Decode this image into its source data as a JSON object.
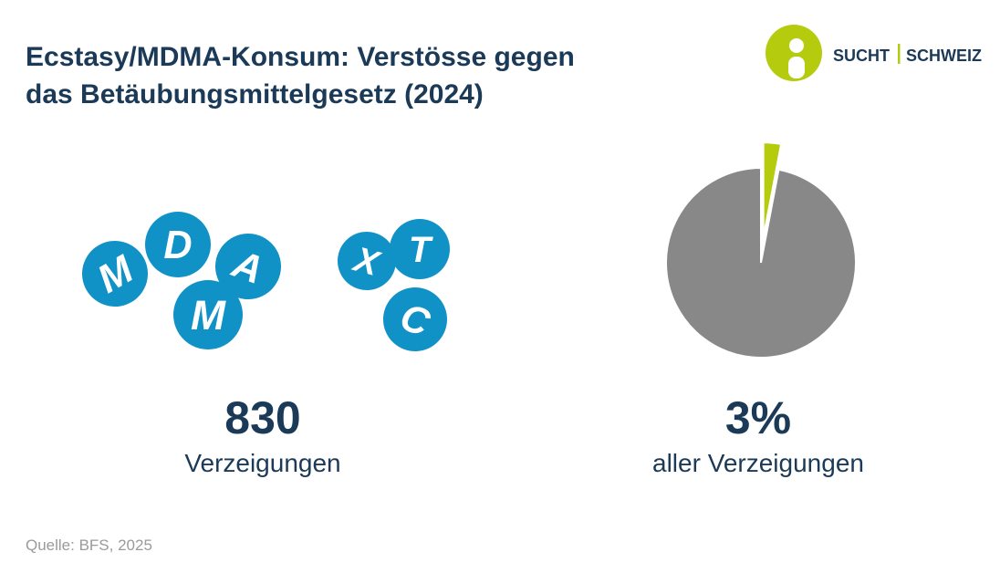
{
  "header": {
    "title_lines": [
      "Ecstasy/MDMA-Konsum: Verstösse gegen",
      "das Betäubungsmittelgesetz (2024)"
    ],
    "logo": [
      "SUCHT",
      "SCHWEIZ"
    ]
  },
  "pills": [
    "M",
    "D",
    "A",
    "M",
    "X",
    "T",
    "C"
  ],
  "stat": {
    "value": 830,
    "label": "Verzeigungen"
  },
  "chart_data": {
    "type": "pie",
    "values": [
      3,
      97
    ],
    "value_labels": [
      "3%",
      null
    ],
    "colors": [
      "#b5cc0e",
      "#888888"
    ],
    "caption": "aller Verzeigungen"
  },
  "source": "Quelle: BFS, 2025"
}
